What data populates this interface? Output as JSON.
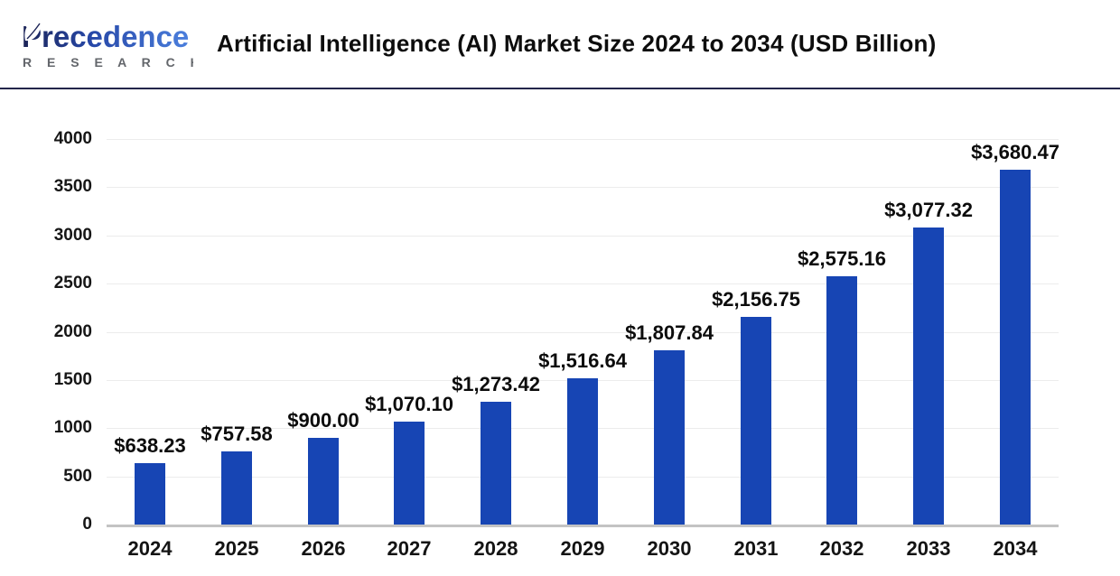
{
  "header": {
    "logo": {
      "brand_primary": "Precedence",
      "brand_secondary": "R E S E A R C H",
      "brand_color_dark": "#1b2356",
      "brand_color_mid": "#2748a8",
      "brand_color_light": "#4b7fdd",
      "secondary_color": "#63666b"
    },
    "title": "Artificial Intelligence (AI) Market Size 2024 to 2034 (USD Billion)"
  },
  "colors": {
    "bar": "#1745b4",
    "gridline": "#ececec",
    "axis_line": "#c3c3c3",
    "divider": "#23254a",
    "text": "#0d0d0d"
  },
  "chart_data": {
    "type": "bar",
    "title": "Artificial Intelligence (AI) Market Size 2024 to 2034 (USD Billion)",
    "xlabel": "",
    "ylabel": "",
    "categories": [
      "2024",
      "2025",
      "2026",
      "2027",
      "2028",
      "2029",
      "2030",
      "2031",
      "2032",
      "2033",
      "2034"
    ],
    "values": [
      638.23,
      757.58,
      900.0,
      1070.1,
      1273.42,
      1516.64,
      1807.84,
      2156.75,
      2575.16,
      3077.32,
      3680.47
    ],
    "value_labels": [
      "$638.23",
      "$757.58",
      "$900.00",
      "$1,070.10",
      "$1,273.42",
      "$1,516.64",
      "$1,807.84",
      "$2,156.75",
      "$2,575.16",
      "$3,077.32",
      "$3,680.47"
    ],
    "ylim": [
      0,
      4000
    ],
    "ytick_step": 500,
    "ytick_labels": [
      "0",
      "500",
      "1000",
      "1500",
      "2000",
      "2500",
      "3000",
      "3500",
      "4000"
    ],
    "grid": true,
    "legend": "none",
    "bar_color": "#1745b4",
    "unit": "USD Billion"
  }
}
